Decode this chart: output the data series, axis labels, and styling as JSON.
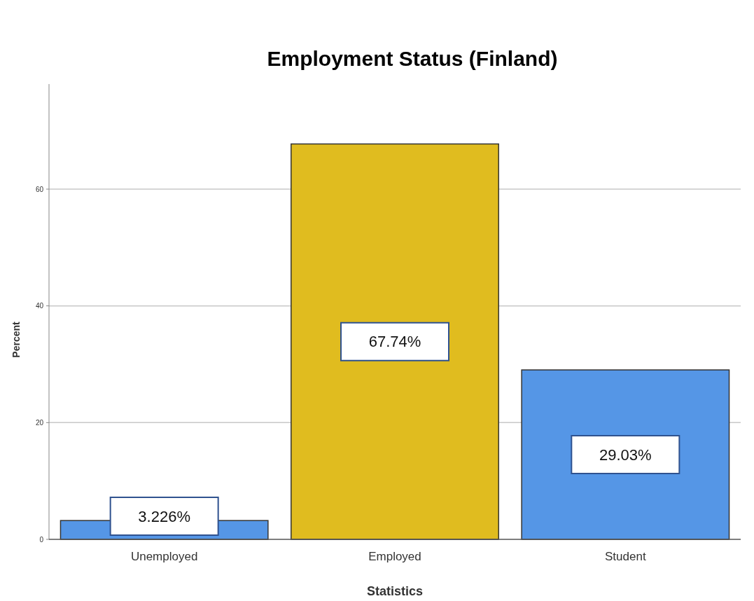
{
  "chart_data": {
    "type": "bar",
    "title": "Employment Status (Finland)",
    "xlabel": "Statistics",
    "ylabel": "Percent",
    "categories": [
      "Unemployed",
      "Employed",
      "Student"
    ],
    "values": [
      3.226,
      67.74,
      29.03
    ],
    "colors": [
      "#5596e6",
      "#e0bc1f",
      "#5596e6"
    ],
    "value_labels": [
      "3.226%",
      "67.74%",
      "29.03%"
    ],
    "ylim": [
      0,
      78
    ],
    "yticks": [
      0,
      20,
      40,
      60
    ],
    "grid": "y"
  }
}
